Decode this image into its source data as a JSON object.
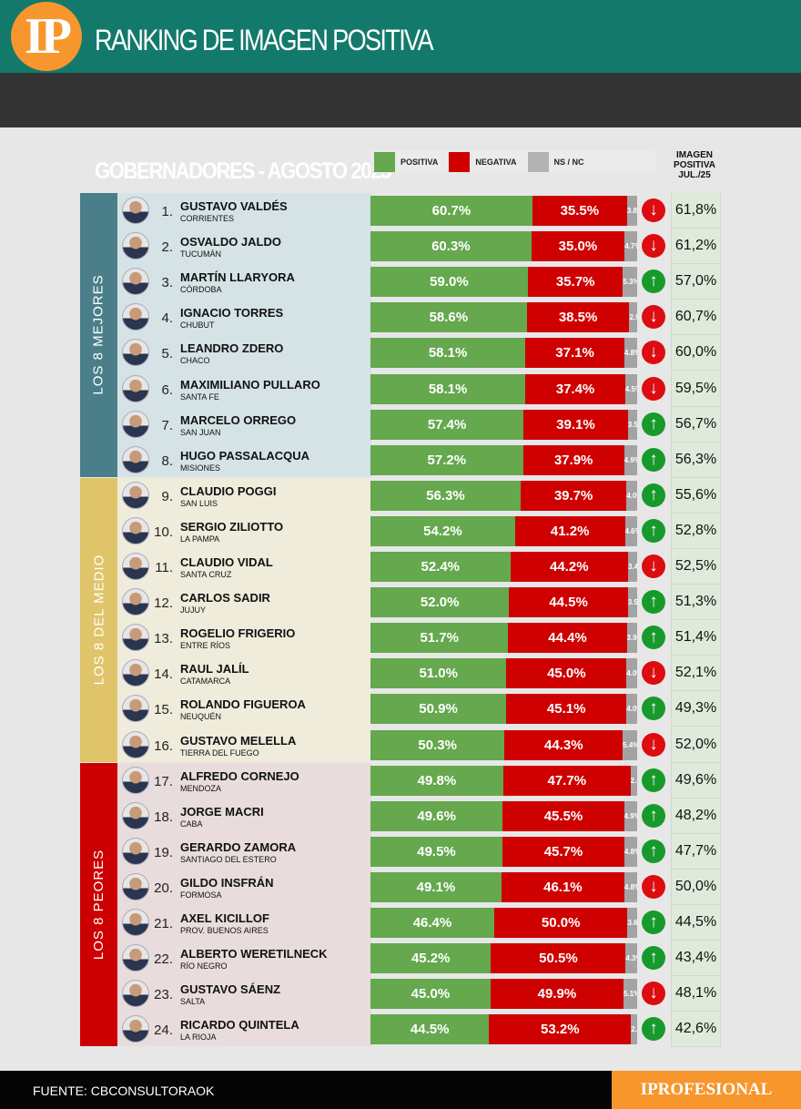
{
  "header": {
    "logo": "IP",
    "title": "RANKING DE IMAGEN POSITIVA",
    "subtitle": "GOBERNADORES - AGOSTO 2025"
  },
  "legend": {
    "positive": "POSITIVA",
    "negative": "NEGATIVA",
    "nsnc": "NS / NC",
    "jul_header": "IMAGEN POSITIVA JUL./25"
  },
  "colors": {
    "positive": "#65a84e",
    "negative": "#cf0000",
    "nsnc": "#a3a3a3",
    "up": "#179a2b",
    "down": "#dc0c10"
  },
  "groups": [
    {
      "label": "LOS 8 MEJORES",
      "color": "#4a7f8a",
      "bg": "#d5e3e6"
    },
    {
      "label": "LOS 8 DEL MEDIO",
      "color": "#e0c46a",
      "bg": "#efecdc"
    },
    {
      "label": "LOS 8 PEORES",
      "color": "#cc0000",
      "bg": "#e8dcdc"
    }
  ],
  "chart_data": {
    "type": "bar",
    "stacked": true,
    "orientation": "horizontal",
    "series_names": [
      "POSITIVA",
      "NEGATIVA",
      "NS / NC"
    ],
    "rows": [
      {
        "rank": "1.",
        "name": "GUSTAVO VALDÉS",
        "province": "CORRIENTES",
        "positive": "60.7%",
        "negative": "35.5%",
        "nsnc": "3.8%",
        "trend": "down",
        "jul": "61,8%"
      },
      {
        "rank": "2.",
        "name": "OSVALDO JALDO",
        "province": "TUCUMÁN",
        "positive": "60.3%",
        "negative": "35.0%",
        "nsnc": "4.7%",
        "trend": "down",
        "jul": "61,2%"
      },
      {
        "rank": "3.",
        "name": "MARTÍN LLARYORA",
        "province": "CÓRDOBA",
        "positive": "59.0%",
        "negative": "35.7%",
        "nsnc": "5.3%",
        "trend": "up",
        "jul": "57,0%"
      },
      {
        "rank": "4.",
        "name": "IGNACIO TORRES",
        "province": "CHUBUT",
        "positive": "58.6%",
        "negative": "38.5%",
        "nsnc": "2.9",
        "trend": "down",
        "jul": "60,7%"
      },
      {
        "rank": "5.",
        "name": "LEANDRO ZDERO",
        "province": "CHACO",
        "positive": "58.1%",
        "negative": "37.1%",
        "nsnc": "4.8%",
        "trend": "down",
        "jul": "60,0%"
      },
      {
        "rank": "6.",
        "name": "MAXIMILIANO PULLARO",
        "province": "SANTA FE",
        "positive": "58.1%",
        "negative": "37.4%",
        "nsnc": "4.5%",
        "trend": "down",
        "jul": "59,5%"
      },
      {
        "rank": "7.",
        "name": "MARCELO ORREGO",
        "province": "SAN JUAN",
        "positive": "57.4%",
        "negative": "39.1%",
        "nsnc": "3.5%",
        "trend": "up",
        "jul": "56,7%"
      },
      {
        "rank": "8.",
        "name": "HUGO PASSALACQUA",
        "province": "MISIONES",
        "positive": "57.2%",
        "negative": "37.9%",
        "nsnc": "4.9%",
        "trend": "up",
        "jul": "56,3%"
      },
      {
        "rank": "9.",
        "name": "CLAUDIO POGGI",
        "province": "SAN LUIS",
        "positive": "56.3%",
        "negative": "39.7%",
        "nsnc": "4.0%",
        "trend": "up",
        "jul": "55,6%"
      },
      {
        "rank": "10.",
        "name": "SERGIO ZILIOTTO",
        "province": "LA PAMPA",
        "positive": "54.2%",
        "negative": "41.2%",
        "nsnc": "4.6%",
        "trend": "up",
        "jul": "52,8%"
      },
      {
        "rank": "11.",
        "name": "CLAUDIO VIDAL",
        "province": "SANTA CRUZ",
        "positive": "52.4%",
        "negative": "44.2%",
        "nsnc": "3.4%",
        "trend": "down",
        "jul": "52,5%"
      },
      {
        "rank": "12.",
        "name": "CARLOS SADIR",
        "province": "JUJUY",
        "positive": "52.0%",
        "negative": "44.5%",
        "nsnc": "3.5%",
        "trend": "up",
        "jul": "51,3%"
      },
      {
        "rank": "13.",
        "name": "ROGELIO FRIGERIO",
        "province": "ENTRE RÍOS",
        "positive": "51.7%",
        "negative": "44.4%",
        "nsnc": "3.9%",
        "trend": "up",
        "jul": "51,4%"
      },
      {
        "rank": "14.",
        "name": "RAUL JALÍL",
        "province": "CATAMARCA",
        "positive": "51.0%",
        "negative": "45.0%",
        "nsnc": "4.0%",
        "trend": "down",
        "jul": "52,1%"
      },
      {
        "rank": "15.",
        "name": "ROLANDO FIGUEROA",
        "province": "NEUQUÉN",
        "positive": "50.9%",
        "negative": "45.1%",
        "nsnc": "4.0%",
        "trend": "up",
        "jul": "49,3%"
      },
      {
        "rank": "16.",
        "name": "GUSTAVO MELELLA",
        "province": "TIERRA DEL FUEGO",
        "positive": "50.3%",
        "negative": "44.3%",
        "nsnc": "5.4%",
        "trend": "down",
        "jul": "52,0%"
      },
      {
        "rank": "17.",
        "name": "ALFREDO CORNEJO",
        "province": "MENDOZA",
        "positive": "49.8%",
        "negative": "47.7%",
        "nsnc": "2.5",
        "trend": "up",
        "jul": "49,6%"
      },
      {
        "rank": "18.",
        "name": "JORGE MACRI",
        "province": "CABA",
        "positive": "49.6%",
        "negative": "45.5%",
        "nsnc": "4.9%",
        "trend": "up",
        "jul": "48,2%"
      },
      {
        "rank": "19.",
        "name": "GERARDO ZAMORA",
        "province": "SANTIAGO DEL ESTERO",
        "positive": "49.5%",
        "negative": "45.7%",
        "nsnc": "4.8%",
        "trend": "up",
        "jul": "47,7%"
      },
      {
        "rank": "20.",
        "name": "GILDO INSFRÁN",
        "province": "FORMOSA",
        "positive": "49.1%",
        "negative": "46.1%",
        "nsnc": "4.8%",
        "trend": "down",
        "jul": "50,0%"
      },
      {
        "rank": "21.",
        "name": "AXEL KICILLOF",
        "province": "PROV. BUENOS AIRES",
        "positive": "46.4%",
        "negative": "50.0%",
        "nsnc": "3.6%",
        "trend": "up",
        "jul": "44,5%"
      },
      {
        "rank": "22.",
        "name": "ALBERTO WERETILNECK",
        "province": "RÍO NEGRO",
        "positive": "45.2%",
        "negative": "50.5%",
        "nsnc": "4.3%",
        "trend": "up",
        "jul": "43,4%"
      },
      {
        "rank": "23.",
        "name": "GUSTAVO SÁENZ",
        "province": "SALTA",
        "positive": "45.0%",
        "negative": "49.9%",
        "nsnc": "5.1%",
        "trend": "down",
        "jul": "48,1%"
      },
      {
        "rank": "24.",
        "name": "RICARDO QUINTELA",
        "province": "LA RIOJA",
        "positive": "44.5%",
        "negative": "53.2%",
        "nsnc": "2.3",
        "trend": "up",
        "jul": "42,6%"
      }
    ]
  },
  "footer": {
    "source": "FUENTE: CBCONSULTORAOK",
    "brand": "IPROFESIONAL"
  }
}
